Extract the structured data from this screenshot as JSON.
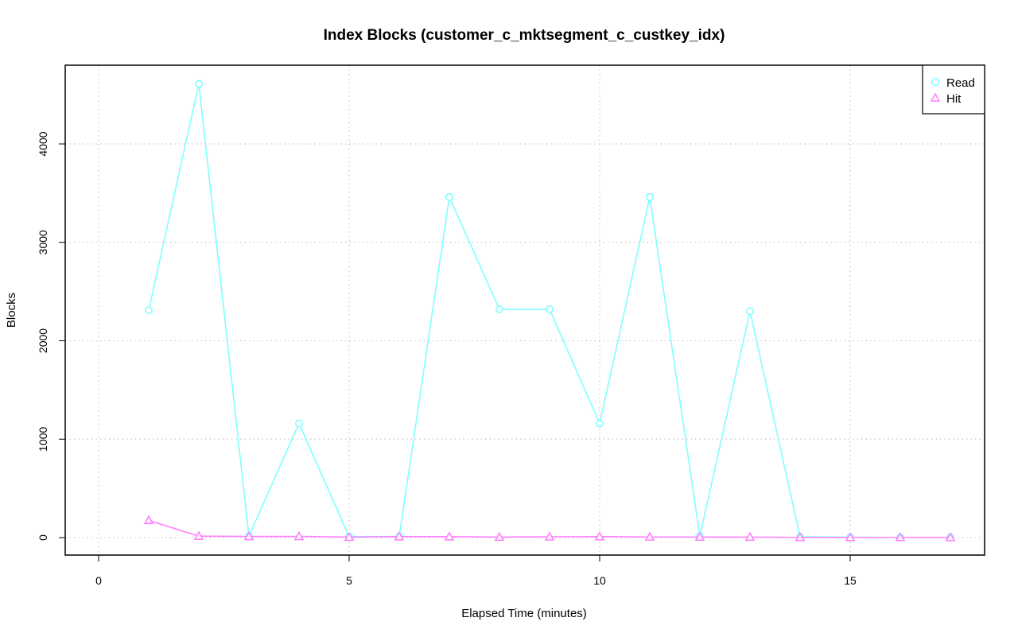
{
  "chart_data": {
    "type": "line",
    "title": "Index Blocks (customer_c_mktsegment_c_custkey_idx)",
    "xlabel": "Elapsed Time (minutes)",
    "ylabel": "Blocks",
    "xlim": [
      0,
      17
    ],
    "ylim": [
      0,
      4600
    ],
    "x_ticks": [
      0,
      5,
      10,
      15
    ],
    "y_ticks": [
      0,
      1000,
      2000,
      3000,
      4000
    ],
    "grid": true,
    "legend_position": "top-right",
    "x": [
      1,
      2,
      3,
      4,
      5,
      6,
      7,
      8,
      9,
      10,
      11,
      12,
      13,
      14,
      15,
      16,
      17
    ],
    "series": [
      {
        "name": "Read",
        "color": "#7fffff",
        "marker": "circle",
        "values": [
          2310,
          4610,
          15,
          1160,
          10,
          12,
          3460,
          2320,
          2320,
          1160,
          3460,
          15,
          2300,
          8,
          4,
          2,
          2
        ]
      },
      {
        "name": "Hit",
        "color": "#ff80ff",
        "marker": "triangle",
        "values": [
          175,
          15,
          12,
          12,
          5,
          10,
          10,
          5,
          8,
          10,
          6,
          6,
          5,
          2,
          2,
          2,
          2
        ]
      }
    ]
  }
}
